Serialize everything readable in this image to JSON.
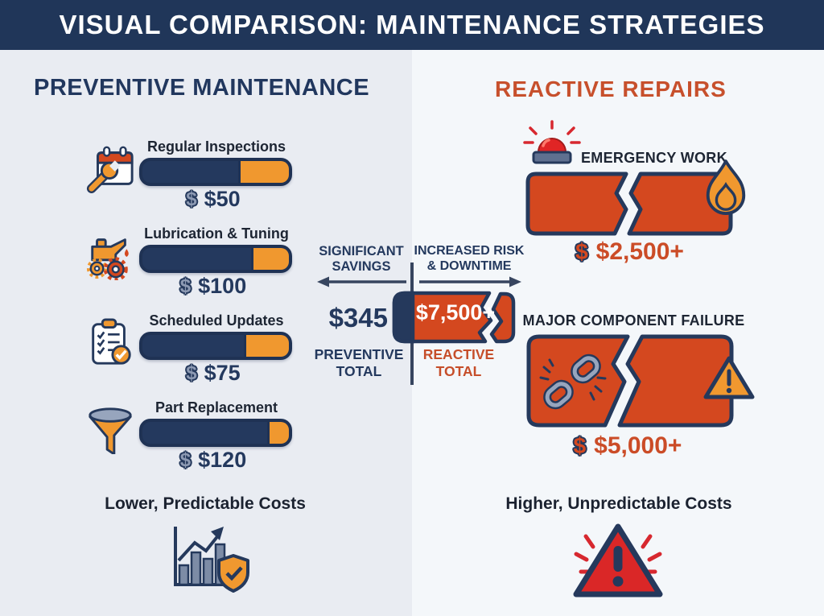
{
  "header": {
    "title": "VISUAL COMPARISON: MAINTENANCE STRATEGIES"
  },
  "glyphs": {
    "dollar": "$"
  },
  "preventive": {
    "heading": "PREVENTIVE MAINTENANCE",
    "items": [
      {
        "icon": "calendar-wrench-icon",
        "label": "Regular Inspections",
        "price": "$50",
        "orange_pct": 33
      },
      {
        "icon": "oil-can-gears-icon",
        "label": "Lubrication & Tuning",
        "price": "$100",
        "orange_pct": 24
      },
      {
        "icon": "clipboard-check-icon",
        "label": "Scheduled Updates",
        "price": "$75",
        "orange_pct": 29
      },
      {
        "icon": "funnel-icon",
        "label": "Part Replacement",
        "price": "$120",
        "orange_pct": 13
      }
    ],
    "summary": {
      "label": "Lower, Predictable Costs",
      "icon": "growth-chart-shield-icon"
    }
  },
  "reactive": {
    "heading": "REACTIVE REPAIRS",
    "items": [
      {
        "icons": [
          "siren-icon",
          "flame-icon"
        ],
        "label": "EMERGENCY WORK",
        "price": "$2,500+"
      },
      {
        "icons": [
          "broken-chain-icon",
          "warning-triangle-icon"
        ],
        "label": "MAJOR COMPONENT FAILURE",
        "price": "$5,000+"
      }
    ],
    "summary": {
      "label": "Higher, Unpredictable Costs",
      "icon": "alert-triangle-rays-icon"
    }
  },
  "center": {
    "savings_label": "SIGNIFICANT\nSAVINGS",
    "risk_label": "INCREASED RISK\n& DOWNTIME",
    "preventive_total": {
      "value": "$345",
      "label": "PREVENTIVE\nTOTAL"
    },
    "reactive_total": {
      "value": "$7,500+",
      "label": "REACTIVE\nTOTAL"
    }
  },
  "colors": {
    "header_navy": "#203659",
    "bar_navy": "#24395e",
    "bar_border": "#1f3254",
    "orange": "#f0982f",
    "orange_red_fill": "#d4481f",
    "orange_red_text": "#cb4c27",
    "red": "#d7282f",
    "left_bg": "#e9ecf2",
    "right_bg": "#f4f7fa",
    "text_dark": "#1d2533",
    "dollar_gray": "#8d9ab3",
    "white": "#ffffff"
  }
}
